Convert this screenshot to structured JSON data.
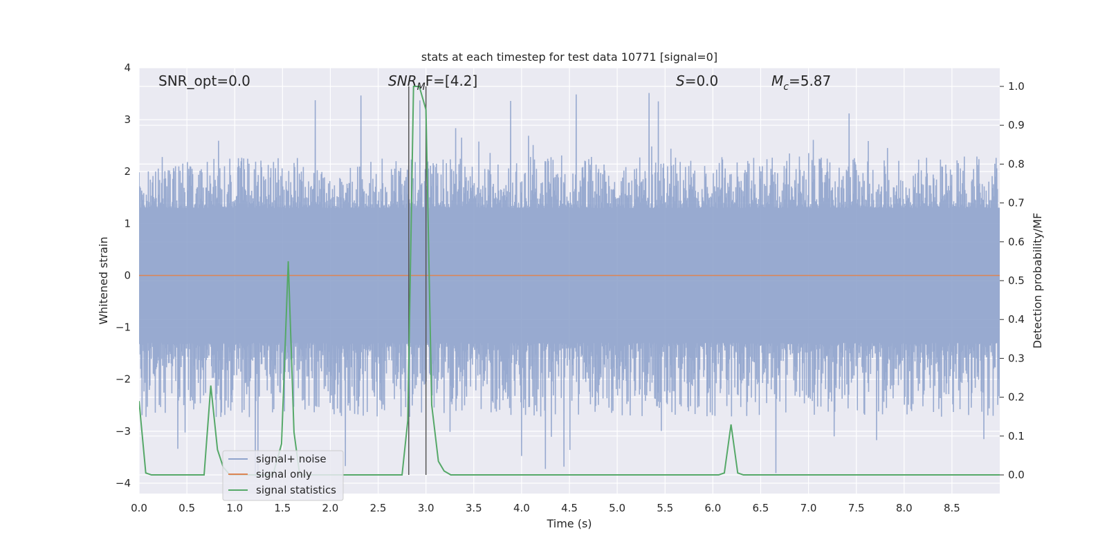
{
  "chart_data": {
    "type": "line",
    "title": "stats at each timestep for test data 10771 [signal=0]",
    "xlabel": "Time (s)",
    "ylabel_left": "Whitened strain",
    "ylabel_right": "Detection probability/MF",
    "xlim": [
      0,
      9.0
    ],
    "ylim_left": [
      -4.2,
      4.0
    ],
    "ylim_right": [
      -0.048,
      1.048
    ],
    "x_ticks": [
      "0.0",
      "0.5",
      "1.0",
      "1.5",
      "2.0",
      "2.5",
      "3.0",
      "3.5",
      "4.0",
      "4.5",
      "5.0",
      "5.5",
      "6.0",
      "6.5",
      "7.0",
      "7.5",
      "8.0",
      "8.5"
    ],
    "y_left_ticks": [
      "4",
      "3",
      "2",
      "1",
      "0",
      "−1",
      "−2",
      "−3",
      "−4"
    ],
    "y_right_ticks": [
      "1.0",
      "0.9",
      "0.8",
      "0.7",
      "0.6",
      "0.5",
      "0.4",
      "0.3",
      "0.2",
      "0.1",
      "0.0"
    ],
    "grid": true,
    "legend_position": "lower-left",
    "annotations": {
      "snr_opt": "SNR_opt=0.0",
      "snr_mf_italic": "SNR",
      "snr_mf_sub": "M",
      "snr_mf_rest": "F=[4.2]",
      "s_italic": "S",
      "s_rest": "=0.0",
      "mc_italic": "M",
      "mc_sub": "c",
      "mc_rest": "=5.87"
    },
    "vertical_lines_x": [
      2.82,
      3.0
    ],
    "series": [
      {
        "name": "signal+ noise",
        "color": "#8fa3cc",
        "band": {
          "core_low": -1.3,
          "core_high": 1.3,
          "typical_peak": 2.2,
          "max_peak": 3.6,
          "min_trough": -4.0
        }
      },
      {
        "name": "signal only",
        "color": "#dd8452",
        "x": [
          0,
          9.0
        ],
        "y": [
          0,
          0
        ]
      },
      {
        "name": "signal statistics",
        "color": "#55a868",
        "x": [
          0,
          0.07,
          0.13,
          0.2,
          0.68,
          0.75,
          0.82,
          0.88,
          0.95,
          1.0,
          1.1,
          1.2,
          1.3,
          1.4,
          1.49,
          1.56,
          1.62,
          1.68,
          2.0,
          2.5,
          2.75,
          2.81,
          2.87,
          2.93,
          3.0,
          3.06,
          3.13,
          3.19,
          3.26,
          6.06,
          6.12,
          6.19,
          6.26,
          6.32,
          9.0
        ],
        "y": [
          0.19,
          0.005,
          0.0,
          0.0,
          0.0,
          0.23,
          0.065,
          0.02,
          0.0,
          0.0,
          0.0,
          0.0,
          0.0,
          0.0,
          0.08,
          0.55,
          0.11,
          0.0,
          0.0,
          0.0,
          0.0,
          0.14,
          1.0,
          1.0,
          0.94,
          0.18,
          0.035,
          0.01,
          0.0,
          0.0,
          0.005,
          0.13,
          0.005,
          0.0,
          0.0
        ]
      }
    ]
  }
}
